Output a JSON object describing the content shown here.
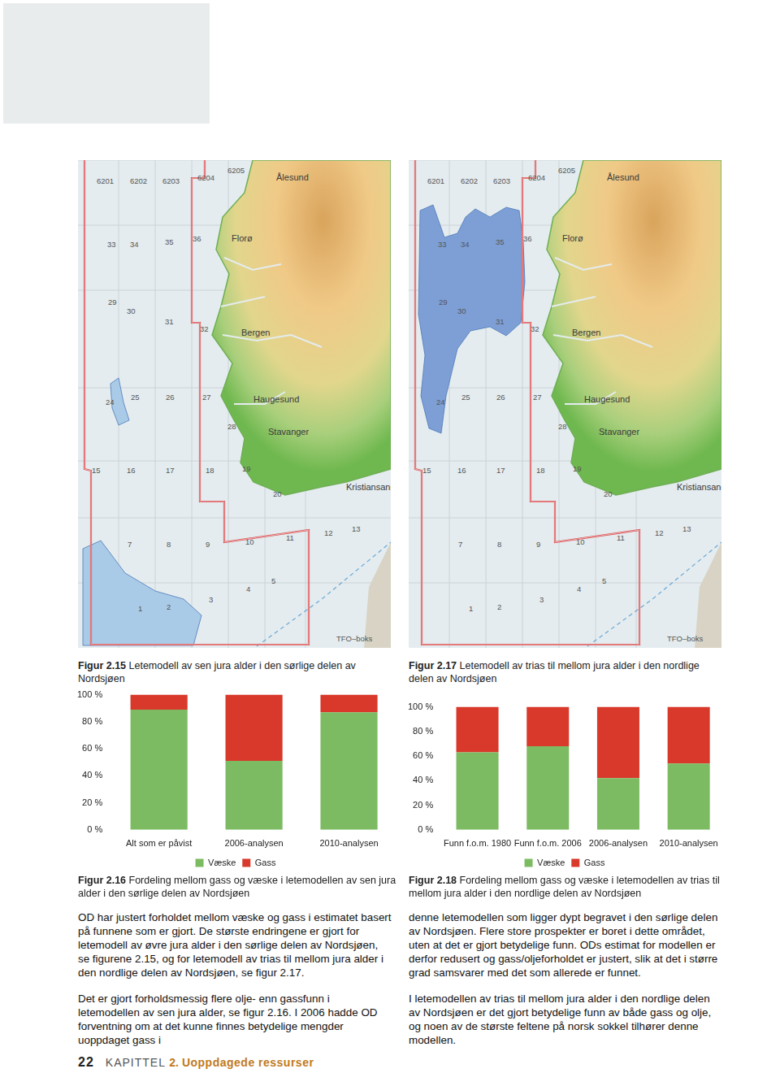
{
  "maps": [
    {
      "figure": "Figur 2.15",
      "caption": "Letemodell av sen jura alder i den sørlige delen av Nordsjøen"
    },
    {
      "figure": "Figur 2.17",
      "caption": "Letemodell av trias til mellom jura alder i den nordlige delen av Nordsjøen"
    }
  ],
  "map_labels": [
    "6201",
    "6202",
    "6203",
    "6204",
    "6205",
    "Ålesund",
    "33",
    "34",
    "35",
    "36",
    "Florø",
    "29",
    "30",
    "31",
    "32",
    "Bergen",
    "24",
    "25",
    "26",
    "27",
    "Haugesund",
    "28",
    "Stavanger",
    "15",
    "16",
    "17",
    "18",
    "19",
    "20",
    "Kristiansand",
    "7",
    "8",
    "9",
    "10",
    "11",
    "12",
    "13",
    "1",
    "2",
    "3",
    "4",
    "5",
    "TFO–boks"
  ],
  "chart_data": [
    {
      "type": "bar",
      "stacked": true,
      "grid": false,
      "legend": "bottom",
      "categories": [
        "Alt som er påvist",
        "2006-analysen",
        "2010-analysen"
      ],
      "series": [
        {
          "name": "Væske",
          "color": "#7dbb62",
          "values": [
            89,
            51,
            87
          ]
        },
        {
          "name": "Gass",
          "color": "#d8392b",
          "values": [
            11,
            49,
            13
          ]
        }
      ],
      "ylim": [
        0,
        100
      ],
      "yticks": [
        {
          "value": 0,
          "label": "0 %"
        },
        {
          "value": 20,
          "label": "20 %"
        },
        {
          "value": 40,
          "label": "40 %"
        },
        {
          "value": 60,
          "label": "60 %"
        },
        {
          "value": 80,
          "label": "80 %"
        },
        {
          "value": 100,
          "label": "100 %"
        }
      ]
    },
    {
      "type": "bar",
      "stacked": true,
      "grid": false,
      "legend": "bottom",
      "categories": [
        "Funn f.o.m. 1980",
        "Funn f.o.m. 2006",
        "2006-analysen",
        "2010-analysen"
      ],
      "series": [
        {
          "name": "Væske",
          "color": "#7dbb62",
          "values": [
            63,
            68,
            42,
            54
          ]
        },
        {
          "name": "Gass",
          "color": "#d8392b",
          "values": [
            37,
            32,
            58,
            46
          ]
        }
      ],
      "ylim": [
        0,
        100
      ],
      "yticks": [
        {
          "value": 0,
          "label": "0 %"
        },
        {
          "value": 20,
          "label": "20 %"
        },
        {
          "value": 40,
          "label": "40 %"
        },
        {
          "value": 60,
          "label": "60 %"
        },
        {
          "value": 80,
          "label": "80 %"
        },
        {
          "value": 100,
          "label": "100 %"
        }
      ]
    }
  ],
  "chart_captions": [
    {
      "figure": "Figur 2.16",
      "caption": "Fordeling mellom gass og væske i letemodellen av sen jura alder i den sørlige delen av Nordsjøen"
    },
    {
      "figure": "Figur 2.18",
      "caption": "Fordeling mellom gass og væske i letemodellen av trias til mellom jura alder i den nordlige delen av Nordsjøen"
    }
  ],
  "body": {
    "left": [
      "OD har justert forholdet mellom væske og gass i estimatet basert på funnene som er gjort. De største endringene er gjort for letemodell av øvre jura alder i den sørlige delen av Nordsjøen, se figurene 2.15, og for letemodell av trias til mellom jura alder i den nordlige delen av Nordsjøen, se figur 2.17.",
      "Det er gjort forholdsmessig flere olje- enn gassfunn i letemodellen av sen jura alder, se figur 2.16. I 2006 hadde OD forventning om at det kunne finnes betydelige mengder uoppdaget gass i"
    ],
    "right": [
      "denne letemodellen som ligger dypt begravet i den sørlige delen av Nordsjøen. Flere store prospekter er boret i dette området, uten at det er gjort betydelige funn. ODs estimat for modellen er derfor redusert og gass/oljeforholdet er justert, slik at det i større grad samsvarer med det som allerede er funnet.",
      "I letemodellen av trias til mellom jura alder i den nordlige delen av Nordsjøen er det gjort betydelige funn av både gass og olje, og noen av de største feltene på norsk sokkel tilhører denne modellen."
    ]
  },
  "footer": {
    "page": "22",
    "chapter": "KAPITTEL",
    "chapter_number": "2.",
    "chapter_title": "Uoppdagede ressurser"
  }
}
